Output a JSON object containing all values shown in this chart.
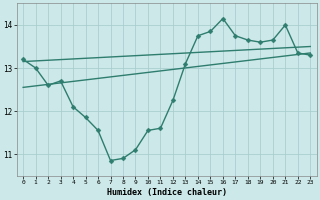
{
  "xlabel": "Humidex (Indice chaleur)",
  "background_color": "#cce8e8",
  "grid_color": "#aacece",
  "line_color": "#2e7d6e",
  "xlim": [
    -0.5,
    23.5
  ],
  "ylim": [
    10.5,
    14.5
  ],
  "yticks": [
    11,
    12,
    13,
    14
  ],
  "xticks": [
    0,
    1,
    2,
    3,
    4,
    5,
    6,
    7,
    8,
    9,
    10,
    11,
    12,
    13,
    14,
    15,
    16,
    17,
    18,
    19,
    20,
    21,
    22,
    23
  ],
  "series1_x": [
    0,
    1,
    2,
    3,
    4,
    5,
    6,
    7,
    8,
    9,
    10,
    11,
    12,
    13,
    14,
    15,
    16,
    17,
    18,
    19,
    20,
    21,
    22,
    23
  ],
  "series1_y": [
    13.2,
    13.0,
    12.6,
    12.7,
    12.1,
    11.85,
    11.55,
    10.85,
    10.9,
    11.1,
    11.55,
    11.6,
    12.25,
    13.1,
    13.75,
    13.85,
    14.15,
    13.75,
    13.65,
    13.6,
    13.65,
    14.0,
    13.35,
    13.3
  ],
  "series2_x": [
    0,
    23
  ],
  "series2_y": [
    13.15,
    13.5
  ],
  "series3_x": [
    0,
    23
  ],
  "series3_y": [
    12.55,
    13.35
  ],
  "marker_size": 2.5,
  "line_width": 1.0
}
